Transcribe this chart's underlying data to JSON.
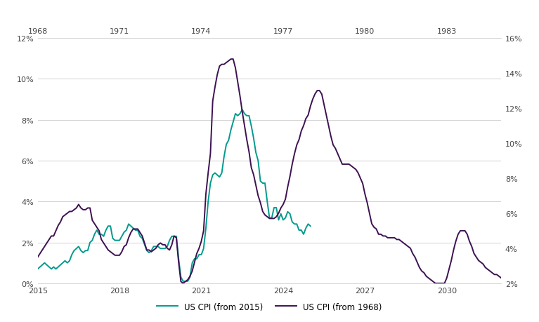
{
  "background_color": "#ffffff",
  "grid_color": "#d0d0d0",
  "left_ylim": [
    0,
    12
  ],
  "right_ylim": [
    2,
    16
  ],
  "left_yticks": [
    0,
    2,
    4,
    6,
    8,
    10,
    12
  ],
  "right_yticks": [
    2,
    4,
    6,
    8,
    10,
    12,
    14,
    16
  ],
  "bottom_xticks": [
    2015,
    2018,
    2021,
    2024,
    2027,
    2030
  ],
  "top_xticks": [
    2015,
    2018,
    2021,
    2024,
    2027,
    2030
  ],
  "top_xlabels": [
    "1968",
    "1971",
    "1974",
    "1977",
    "1980",
    "1983"
  ],
  "teal_color": "#009b8d",
  "purple_color": "#3d1152",
  "line_width": 1.4,
  "legend_labels": [
    "US CPI (from 2015)",
    "US CPI (from 1968)"
  ],
  "teal_x": [
    2015.0,
    2015.083,
    2015.167,
    2015.25,
    2015.333,
    2015.417,
    2015.5,
    2015.583,
    2015.667,
    2015.75,
    2015.833,
    2015.917,
    2016.0,
    2016.083,
    2016.167,
    2016.25,
    2016.333,
    2016.417,
    2016.5,
    2016.583,
    2016.667,
    2016.75,
    2016.833,
    2016.917,
    2017.0,
    2017.083,
    2017.167,
    2017.25,
    2017.333,
    2017.417,
    2017.5,
    2017.583,
    2017.667,
    2017.75,
    2017.833,
    2017.917,
    2018.0,
    2018.083,
    2018.167,
    2018.25,
    2018.333,
    2018.417,
    2018.5,
    2018.583,
    2018.667,
    2018.75,
    2018.833,
    2018.917,
    2019.0,
    2019.083,
    2019.167,
    2019.25,
    2019.333,
    2019.417,
    2019.5,
    2019.583,
    2019.667,
    2019.75,
    2019.833,
    2019.917,
    2020.0,
    2020.083,
    2020.167,
    2020.25,
    2020.333,
    2020.417,
    2020.5,
    2020.583,
    2020.667,
    2020.75,
    2020.833,
    2020.917,
    2021.0,
    2021.083,
    2021.167,
    2021.25,
    2021.333,
    2021.417,
    2021.5,
    2021.583,
    2021.667,
    2021.75,
    2021.833,
    2021.917,
    2022.0,
    2022.083,
    2022.167,
    2022.25,
    2022.333,
    2022.417,
    2022.5,
    2022.583,
    2022.667,
    2022.75,
    2022.833,
    2022.917,
    2023.0,
    2023.083,
    2023.167,
    2023.25,
    2023.333,
    2023.417,
    2023.5,
    2023.583,
    2023.667,
    2023.75,
    2023.833,
    2023.917,
    2024.0,
    2024.083,
    2024.167,
    2024.25,
    2024.333,
    2024.417,
    2024.5,
    2024.583,
    2024.667,
    2024.75,
    2024.833,
    2024.917,
    2025.0
  ],
  "teal_y": [
    0.7,
    0.8,
    0.9,
    1.0,
    0.9,
    0.8,
    0.7,
    0.8,
    0.7,
    0.8,
    0.9,
    1.0,
    1.1,
    1.0,
    1.1,
    1.4,
    1.6,
    1.7,
    1.8,
    1.6,
    1.5,
    1.6,
    1.6,
    2.0,
    2.1,
    2.4,
    2.6,
    2.4,
    2.4,
    2.3,
    2.6,
    2.8,
    2.8,
    2.2,
    2.1,
    2.1,
    2.1,
    2.3,
    2.5,
    2.6,
    2.9,
    2.8,
    2.7,
    2.6,
    2.6,
    2.3,
    2.2,
    1.9,
    1.6,
    1.5,
    1.6,
    1.8,
    1.8,
    1.8,
    1.7,
    1.7,
    1.7,
    1.8,
    2.1,
    2.3,
    2.3,
    2.3,
    1.2,
    0.3,
    0.1,
    0.1,
    0.1,
    0.3,
    1.0,
    1.2,
    1.2,
    1.4,
    1.4,
    1.7,
    2.7,
    4.0,
    4.9,
    5.3,
    5.4,
    5.3,
    5.2,
    5.4,
    6.2,
    6.8,
    7.0,
    7.5,
    7.9,
    8.3,
    8.2,
    8.3,
    8.5,
    8.3,
    8.2,
    8.2,
    7.7,
    7.1,
    6.4,
    6.0,
    5.0,
    4.9,
    4.9,
    4.0,
    3.2,
    3.2,
    3.7,
    3.7,
    3.1,
    3.4,
    3.1,
    3.2,
    3.5,
    3.4,
    3.0,
    2.9,
    2.9,
    2.6,
    2.6,
    2.4,
    2.7,
    2.9,
    2.8
  ],
  "purple_x": [
    2015.0,
    2015.083,
    2015.167,
    2015.25,
    2015.333,
    2015.417,
    2015.5,
    2015.583,
    2015.667,
    2015.75,
    2015.833,
    2015.917,
    2016.0,
    2016.083,
    2016.167,
    2016.25,
    2016.333,
    2016.417,
    2016.5,
    2016.583,
    2016.667,
    2016.75,
    2016.833,
    2016.917,
    2017.0,
    2017.083,
    2017.167,
    2017.25,
    2017.333,
    2017.417,
    2017.5,
    2017.583,
    2017.667,
    2017.75,
    2017.833,
    2017.917,
    2018.0,
    2018.083,
    2018.167,
    2018.25,
    2018.333,
    2018.417,
    2018.5,
    2018.583,
    2018.667,
    2018.75,
    2018.833,
    2018.917,
    2019.0,
    2019.083,
    2019.167,
    2019.25,
    2019.333,
    2019.417,
    2019.5,
    2019.583,
    2019.667,
    2019.75,
    2019.833,
    2019.917,
    2020.0,
    2020.083,
    2020.167,
    2020.25,
    2020.333,
    2020.417,
    2020.5,
    2020.583,
    2020.667,
    2020.75,
    2020.833,
    2020.917,
    2021.0,
    2021.083,
    2021.167,
    2021.25,
    2021.333,
    2021.417,
    2021.5,
    2021.583,
    2021.667,
    2021.75,
    2021.833,
    2021.917,
    2022.0,
    2022.083,
    2022.167,
    2022.25,
    2022.333,
    2022.417,
    2022.5,
    2022.583,
    2022.667,
    2022.75,
    2022.833,
    2022.917,
    2023.0,
    2023.083,
    2023.167,
    2023.25,
    2023.333,
    2023.417,
    2023.5,
    2023.583,
    2023.667,
    2023.75,
    2023.833,
    2023.917,
    2024.0,
    2024.083,
    2024.167,
    2024.25,
    2024.333,
    2024.417,
    2024.5,
    2024.583,
    2024.667,
    2024.75,
    2024.833,
    2024.917,
    2025.0,
    2025.083,
    2025.167,
    2025.25,
    2025.333,
    2025.417,
    2025.5,
    2025.583,
    2025.667,
    2025.75,
    2025.833,
    2025.917,
    2026.0,
    2026.083,
    2026.167,
    2026.25,
    2026.333,
    2026.417,
    2026.5,
    2026.583,
    2026.667,
    2026.75,
    2026.833,
    2026.917,
    2027.0,
    2027.083,
    2027.167,
    2027.25,
    2027.333,
    2027.417,
    2027.5,
    2027.583,
    2027.667,
    2027.75,
    2027.833,
    2027.917,
    2028.0,
    2028.083,
    2028.167,
    2028.25,
    2028.333,
    2028.417,
    2028.5,
    2028.583,
    2028.667,
    2028.75,
    2028.833,
    2028.917,
    2029.0,
    2029.083,
    2029.167,
    2029.25,
    2029.333,
    2029.417,
    2029.5,
    2029.583,
    2029.667,
    2029.75,
    2029.833,
    2029.917,
    2030.0,
    2030.083,
    2030.167,
    2030.25,
    2030.333,
    2030.417,
    2030.5,
    2030.583,
    2030.667,
    2030.75,
    2030.833,
    2030.917,
    2031.0,
    2031.083,
    2031.167,
    2031.25,
    2031.333,
    2031.417,
    2031.5,
    2031.583,
    2031.667,
    2031.75,
    2031.833,
    2031.917,
    2032.0
  ],
  "purple_y": [
    3.5,
    3.7,
    3.9,
    4.1,
    4.3,
    4.5,
    4.7,
    4.7,
    5.0,
    5.3,
    5.5,
    5.8,
    5.9,
    6.0,
    6.1,
    6.1,
    6.2,
    6.3,
    6.5,
    6.3,
    6.2,
    6.2,
    6.3,
    6.3,
    5.6,
    5.4,
    5.2,
    5.0,
    4.5,
    4.3,
    4.1,
    3.9,
    3.8,
    3.7,
    3.6,
    3.6,
    3.6,
    3.8,
    4.1,
    4.2,
    4.6,
    4.9,
    5.1,
    5.1,
    5.1,
    4.9,
    4.7,
    4.3,
    3.9,
    3.9,
    3.8,
    3.9,
    4.0,
    4.2,
    4.3,
    4.2,
    4.2,
    4.0,
    3.9,
    4.2,
    4.7,
    4.6,
    3.2,
    2.1,
    2.0,
    2.1,
    2.2,
    2.4,
    2.7,
    3.2,
    3.7,
    4.0,
    4.4,
    5.0,
    7.1,
    8.3,
    9.4,
    12.4,
    13.2,
    13.9,
    14.4,
    14.5,
    14.5,
    14.6,
    14.7,
    14.8,
    14.8,
    14.3,
    13.5,
    12.7,
    11.8,
    11.0,
    10.2,
    9.5,
    8.6,
    8.2,
    7.6,
    7.0,
    6.6,
    6.1,
    5.9,
    5.8,
    5.7,
    5.7,
    5.7,
    5.8,
    6.0,
    6.3,
    6.5,
    6.8,
    7.5,
    8.1,
    8.8,
    9.4,
    9.9,
    10.2,
    10.7,
    11.0,
    11.4,
    11.6,
    12.1,
    12.5,
    12.8,
    13.0,
    13.0,
    12.8,
    12.2,
    11.6,
    11.0,
    10.4,
    9.9,
    9.7,
    9.4,
    9.1,
    8.8,
    8.8,
    8.8,
    8.8,
    8.7,
    8.6,
    8.5,
    8.3,
    8.0,
    7.7,
    7.1,
    6.6,
    6.0,
    5.4,
    5.2,
    5.1,
    4.8,
    4.8,
    4.7,
    4.7,
    4.6,
    4.6,
    4.6,
    4.6,
    4.5,
    4.5,
    4.4,
    4.3,
    4.2,
    4.1,
    4.0,
    3.7,
    3.5,
    3.2,
    2.9,
    2.7,
    2.6,
    2.4,
    2.3,
    2.2,
    2.1,
    2.0,
    2.0,
    2.0,
    2.0,
    2.0,
    2.3,
    2.8,
    3.3,
    3.9,
    4.4,
    4.8,
    5.0,
    5.0,
    5.0,
    4.8,
    4.4,
    4.1,
    3.7,
    3.5,
    3.3,
    3.2,
    3.1,
    2.9,
    2.8,
    2.7,
    2.6,
    2.5,
    2.5,
    2.4,
    2.3
  ]
}
